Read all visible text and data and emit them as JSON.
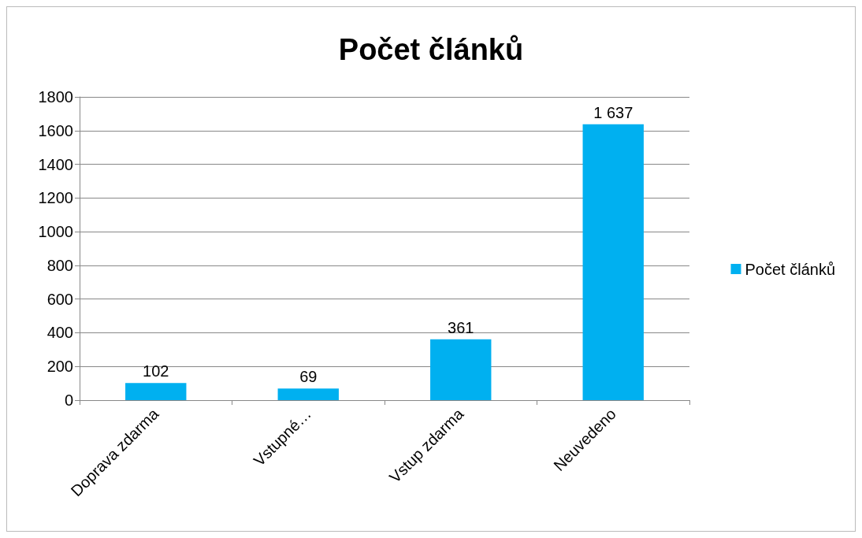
{
  "chart_data": {
    "type": "bar",
    "title": "Počet článků",
    "categories": [
      "Doprava zdarma",
      "Vstupné…",
      "Vstup zdarma",
      "Neuvedeno"
    ],
    "series": [
      {
        "name": "Počet článků",
        "color": "#00b0f0",
        "values": [
          102,
          69,
          361,
          1637
        ],
        "value_labels": [
          "102",
          "69",
          "361",
          "1 637"
        ]
      }
    ],
    "ylim": [
      0,
      1800
    ],
    "yticks": [
      0,
      200,
      400,
      600,
      800,
      1000,
      1200,
      1400,
      1600,
      1800
    ],
    "grid": "y",
    "legend": "right"
  }
}
